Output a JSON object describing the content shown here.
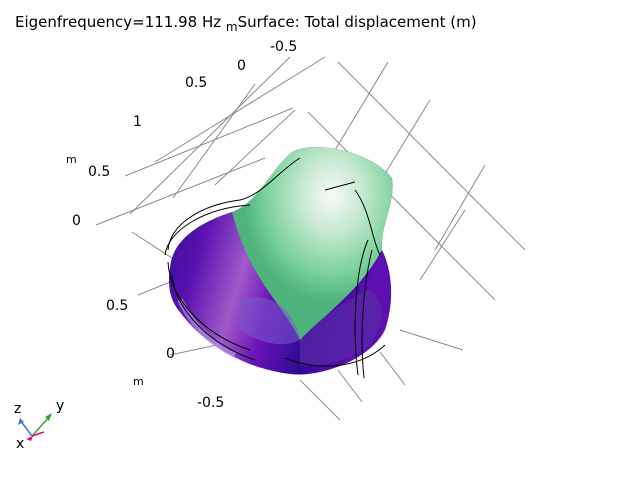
{
  "title": {
    "eigen": "Eigenfrequency=111.98 Hz",
    "unit_after_hz": "m",
    "surface": "Surface: Total displacement (m)"
  },
  "axis_ticks": {
    "top_back": [
      "-0.5",
      "0"
    ],
    "left_top": [
      "0.5",
      "1"
    ],
    "z": [
      "0.5",
      "0"
    ],
    "front": [
      "0.5",
      "0",
      "-0.5"
    ]
  },
  "units": {
    "z_unit": "m",
    "front_unit": "m"
  },
  "triad": {
    "x": "x",
    "y": "y",
    "z": "z"
  },
  "colors": {
    "purple_dark": "#2a0a8f",
    "purple_mid": "#7a0fb0",
    "green_light": "#b8e6c4",
    "green_mid": "#6ccf8e",
    "grid": "#8a8a8a",
    "triad_x": "#e0105a",
    "triad_y": "#3aa53a",
    "triad_z": "#3a7ad8"
  }
}
